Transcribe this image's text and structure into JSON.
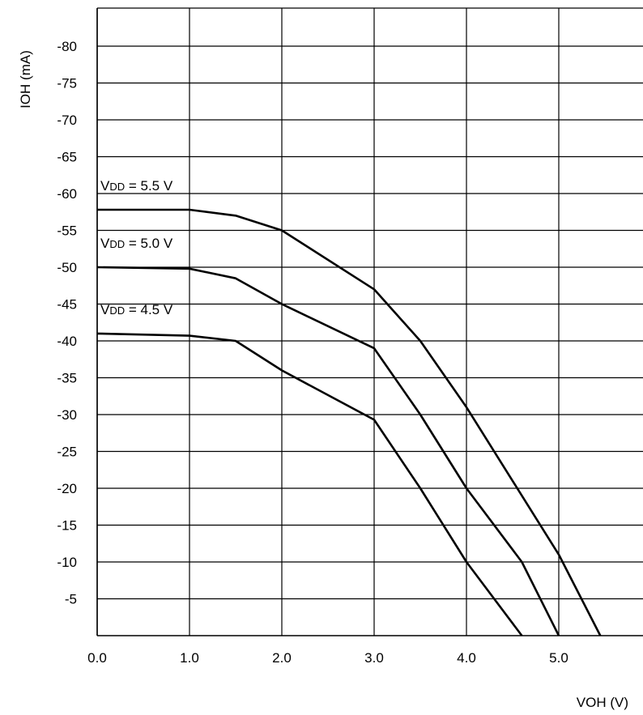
{
  "chart_data": {
    "type": "line",
    "xlabel": "VOH (V)",
    "ylabel": "IOH (mA)",
    "xlim": [
      0,
      5.8
    ],
    "ylim": [
      0,
      -85
    ],
    "x_ticks": [
      "0.0",
      "1.0",
      "2.0",
      "3.0",
      "4.0",
      "5.0"
    ],
    "y_ticks": [
      "-80",
      "-75",
      "-70",
      "-65",
      "-60",
      "-55",
      "-50",
      "-45",
      "-40",
      "-35",
      "-30",
      "-25",
      "-20",
      "-15",
      "-10",
      "-5"
    ],
    "grid": true,
    "series": [
      {
        "name": "VDD = 5.5 V",
        "label_main": "V",
        "label_sub": "DD",
        "label_rest": " = 5.5 V",
        "x": [
          0.0,
          1.0,
          1.5,
          2.0,
          3.0,
          3.5,
          4.0,
          4.5,
          5.0,
          5.45
        ],
        "y": [
          -57.8,
          -57.8,
          -57.0,
          -55.0,
          -47.0,
          -40.0,
          -31.0,
          -21.0,
          -11.0,
          0.0
        ]
      },
      {
        "name": "VDD = 5.0 V",
        "label_main": "V",
        "label_sub": "DD",
        "label_rest": " = 5.0 V",
        "x": [
          0.0,
          1.0,
          1.5,
          2.0,
          3.0,
          3.5,
          4.0,
          4.6,
          5.0
        ],
        "y": [
          -50.0,
          -49.8,
          -48.5,
          -45.0,
          -39.0,
          -30.0,
          -20.0,
          -10.0,
          0.0
        ]
      },
      {
        "name": "VDD = 4.5 V",
        "label_main": "V",
        "label_sub": "DD",
        "label_rest": " = 4.5 V",
        "x": [
          0.0,
          1.0,
          1.5,
          2.0,
          3.0,
          3.5,
          4.0,
          4.6
        ],
        "y": [
          -41.0,
          -40.7,
          -40.0,
          -36.0,
          -29.3,
          -20.0,
          -10.0,
          0.0
        ]
      }
    ]
  }
}
